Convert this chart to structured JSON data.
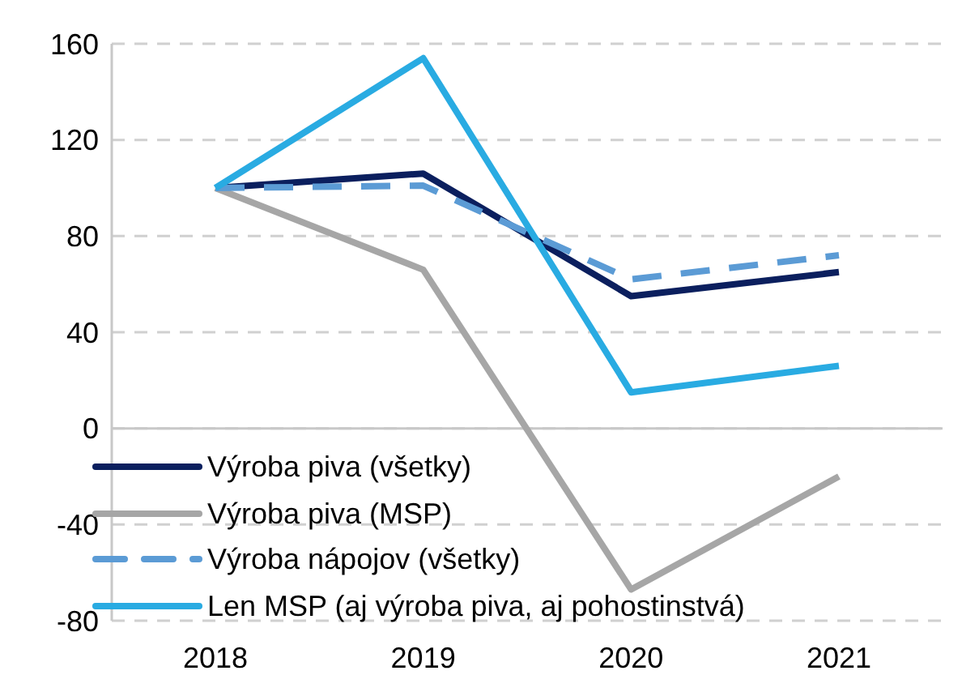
{
  "chart_data": {
    "type": "line",
    "categories": [
      "2018",
      "2019",
      "2020",
      "2021"
    ],
    "series": [
      {
        "name": "Výroba piva (všetky)",
        "color": "#0b1f5e",
        "values": [
          100,
          106,
          55,
          65
        ]
      },
      {
        "name": "Výroba piva (MSP)",
        "color": "#a6a6a6",
        "values": [
          100,
          66,
          -67,
          -20
        ]
      },
      {
        "name": "Výroba nápojov (všetky)",
        "color": "#5b9bd5",
        "values": [
          100,
          101,
          62,
          72
        ],
        "line_style": "dashed"
      },
      {
        "name": "Len MSP (aj výroba piva, aj pohostinstvá)",
        "color": "#29abe2",
        "values": [
          100,
          154,
          15,
          26
        ]
      }
    ],
    "ylim": [
      -80,
      160
    ],
    "yticks": [
      -80,
      -40,
      0,
      40,
      80,
      120,
      160
    ],
    "grid": "y",
    "legend": "bottom left",
    "marker": "none",
    "line_style": "solid"
  }
}
